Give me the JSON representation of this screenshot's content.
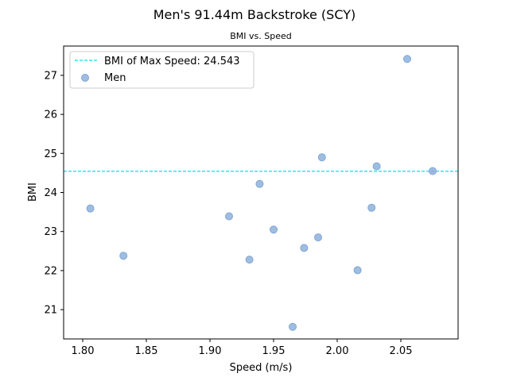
{
  "chart_data": {
    "type": "scatter",
    "title": "Men's 91.44m Backstroke (SCY)",
    "subtitle": "BMI vs. Speed",
    "xlabel": "Speed (m/s)",
    "ylabel": "BMI",
    "xlim": [
      1.785,
      2.095
    ],
    "ylim": [
      20.25,
      27.75
    ],
    "xticks": [
      "1.80",
      "1.85",
      "1.90",
      "1.95",
      "2.00",
      "2.05"
    ],
    "yticks": [
      "21",
      "22",
      "23",
      "24",
      "25",
      "26",
      "27"
    ],
    "grid": false,
    "legend_position": "top-left",
    "colors": {
      "points": "#7fa7d6",
      "reference_line": "#00e5ee"
    },
    "reference_line": {
      "label": "BMI of Max Speed: 24.543",
      "y": 24.543
    },
    "series": [
      {
        "name": "Men",
        "points": [
          {
            "x": 1.806,
            "y": 23.59
          },
          {
            "x": 1.832,
            "y": 22.38
          },
          {
            "x": 1.915,
            "y": 23.39
          },
          {
            "x": 1.931,
            "y": 22.28
          },
          {
            "x": 1.939,
            "y": 24.22
          },
          {
            "x": 1.95,
            "y": 23.05
          },
          {
            "x": 1.965,
            "y": 20.56
          },
          {
            "x": 1.974,
            "y": 22.58
          },
          {
            "x": 1.985,
            "y": 22.85
          },
          {
            "x": 1.988,
            "y": 24.9
          },
          {
            "x": 2.016,
            "y": 22.01
          },
          {
            "x": 2.027,
            "y": 23.61
          },
          {
            "x": 2.031,
            "y": 24.67
          },
          {
            "x": 2.055,
            "y": 27.42
          },
          {
            "x": 2.075,
            "y": 24.55
          }
        ]
      }
    ]
  }
}
